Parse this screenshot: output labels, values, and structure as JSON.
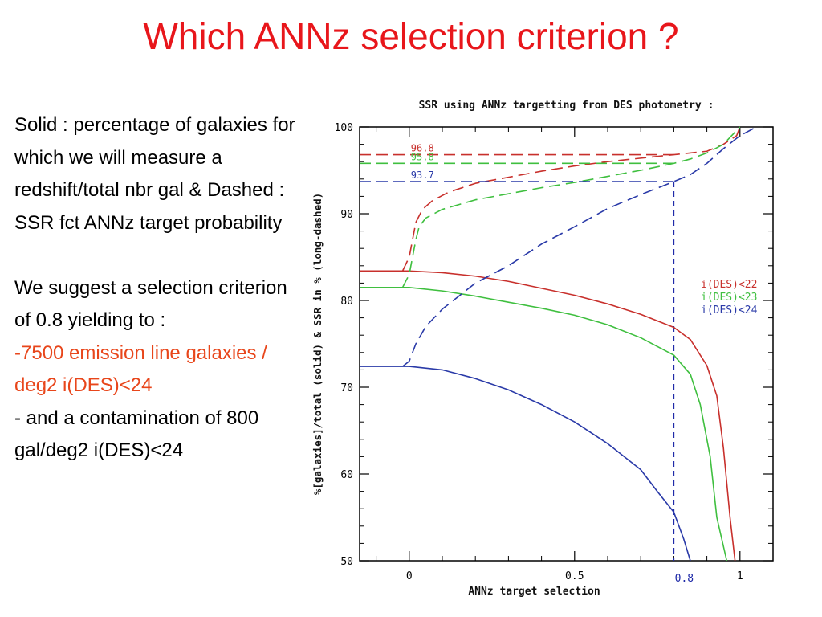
{
  "slide": {
    "title": "Which ANNz selection criterion ?",
    "paragraph1": "Solid : percentage of galaxies for which we will measure a redshift/total nbr gal & Dashed : SSR fct ANNz target probability",
    "paragraph2": "We suggest a selection criterion of 0.8 yielding to :",
    "bullet1": "-7500 emission line galaxies / deg2 i(DES)<24",
    "bullet2": "- and a contamination of 800 gal/deg2 i(DES)<24"
  },
  "chart_data": {
    "type": "line",
    "title": "SSR using ANNz targetting from DES photometry :",
    "xlabel": "ANNz target selection",
    "ylabel": "%[galaxies]/total (solid) & SSR in % (long-dashed)",
    "xlim": [
      -0.15,
      1.1
    ],
    "ylim": [
      50,
      100
    ],
    "xticks": [
      0,
      0.5,
      1
    ],
    "xtick_labels": [
      "0",
      "0.5",
      "1"
    ],
    "yticks": [
      50,
      60,
      70,
      80,
      90,
      100
    ],
    "ytick_labels": [
      "50",
      "60",
      "70",
      "80",
      "90",
      "100"
    ],
    "legend_position": "right",
    "selection_cut": {
      "x": 0.8,
      "label": "0.8",
      "color": "#1f2aa8"
    },
    "annotations": [
      {
        "label": "96.8",
        "y": 96.8,
        "color": "#c8302c"
      },
      {
        "label": "95.8",
        "y": 95.8,
        "color": "#3fbf3f"
      },
      {
        "label": "93.7",
        "y": 93.7,
        "color": "#2a3aa8"
      }
    ],
    "series": [
      {
        "name": "i(DES)<22",
        "color": "#c8302c",
        "kind": "solid",
        "points": [
          [
            -0.15,
            83.4
          ],
          [
            0,
            83.4
          ],
          [
            0.1,
            83.2
          ],
          [
            0.2,
            82.8
          ],
          [
            0.3,
            82.2
          ],
          [
            0.4,
            81.4
          ],
          [
            0.5,
            80.6
          ],
          [
            0.6,
            79.6
          ],
          [
            0.7,
            78.4
          ],
          [
            0.8,
            76.9
          ],
          [
            0.85,
            75.5
          ],
          [
            0.9,
            72.5
          ],
          [
            0.93,
            69
          ],
          [
            0.95,
            63
          ],
          [
            0.97,
            55
          ],
          [
            0.985,
            50
          ]
        ]
      },
      {
        "name": "i(DES)<23",
        "color": "#3fbf3f",
        "kind": "solid",
        "points": [
          [
            -0.15,
            81.5
          ],
          [
            0,
            81.5
          ],
          [
            0.1,
            81.1
          ],
          [
            0.2,
            80.5
          ],
          [
            0.3,
            79.8
          ],
          [
            0.4,
            79.1
          ],
          [
            0.5,
            78.3
          ],
          [
            0.6,
            77.2
          ],
          [
            0.7,
            75.7
          ],
          [
            0.8,
            73.7
          ],
          [
            0.85,
            71.5
          ],
          [
            0.88,
            68
          ],
          [
            0.91,
            62
          ],
          [
            0.93,
            55
          ],
          [
            0.96,
            50
          ]
        ]
      },
      {
        "name": "i(DES)<24",
        "color": "#2a3aa8",
        "kind": "solid",
        "points": [
          [
            -0.15,
            72.4
          ],
          [
            0,
            72.4
          ],
          [
            0.1,
            72
          ],
          [
            0.2,
            71
          ],
          [
            0.3,
            69.7
          ],
          [
            0.4,
            68
          ],
          [
            0.5,
            66
          ],
          [
            0.6,
            63.5
          ],
          [
            0.7,
            60.5
          ],
          [
            0.75,
            58
          ],
          [
            0.8,
            55.6
          ],
          [
            0.83,
            52.5
          ],
          [
            0.85,
            50
          ]
        ]
      },
      {
        "name": "i(DES)<22",
        "color": "#c8302c",
        "kind": "dashed",
        "points": [
          [
            -0.15,
            96.8
          ],
          [
            0.8,
            96.8
          ]
        ]
      },
      {
        "name": "i(DES)<22",
        "color": "#c8302c",
        "kind": "dashed",
        "points": [
          [
            -0.02,
            83.4
          ],
          [
            0,
            85
          ],
          [
            0.01,
            87
          ],
          [
            0.02,
            89
          ],
          [
            0.04,
            90.5
          ],
          [
            0.07,
            91.5
          ],
          [
            0.12,
            92.5
          ],
          [
            0.2,
            93.5
          ],
          [
            0.3,
            94.2
          ],
          [
            0.4,
            94.9
          ],
          [
            0.5,
            95.5
          ],
          [
            0.6,
            96
          ],
          [
            0.7,
            96.4
          ],
          [
            0.8,
            96.8
          ],
          [
            0.9,
            97.2
          ],
          [
            0.95,
            98
          ],
          [
            0.99,
            99
          ],
          [
            1.0,
            100
          ]
        ]
      },
      {
        "name": "i(DES)<23",
        "color": "#3fbf3f",
        "kind": "dashed",
        "points": [
          [
            -0.15,
            95.8
          ],
          [
            0.8,
            95.8
          ]
        ]
      },
      {
        "name": "i(DES)<23",
        "color": "#3fbf3f",
        "kind": "dashed",
        "points": [
          [
            -0.02,
            81.5
          ],
          [
            0,
            83
          ],
          [
            0.01,
            85
          ],
          [
            0.02,
            87
          ],
          [
            0.03,
            88.5
          ],
          [
            0.05,
            89.5
          ],
          [
            0.1,
            90.5
          ],
          [
            0.2,
            91.6
          ],
          [
            0.3,
            92.3
          ],
          [
            0.4,
            93
          ],
          [
            0.5,
            93.6
          ],
          [
            0.6,
            94.3
          ],
          [
            0.7,
            95
          ],
          [
            0.8,
            95.8
          ],
          [
            0.85,
            96.3
          ],
          [
            0.9,
            97
          ],
          [
            0.95,
            98
          ],
          [
            1.0,
            100
          ]
        ]
      },
      {
        "name": "i(DES)<24",
        "color": "#2a3aa8",
        "kind": "dashed",
        "points": [
          [
            -0.15,
            93.7
          ],
          [
            0.8,
            93.7
          ]
        ]
      },
      {
        "name": "i(DES)<24",
        "color": "#2a3aa8",
        "kind": "dashed",
        "points": [
          [
            -0.02,
            72.4
          ],
          [
            0,
            73
          ],
          [
            0.02,
            75
          ],
          [
            0.05,
            77
          ],
          [
            0.1,
            79
          ],
          [
            0.2,
            82
          ],
          [
            0.3,
            84
          ],
          [
            0.4,
            86.5
          ],
          [
            0.5,
            88.5
          ],
          [
            0.6,
            90.6
          ],
          [
            0.7,
            92.2
          ],
          [
            0.8,
            93.7
          ],
          [
            0.85,
            94.5
          ],
          [
            0.9,
            95.8
          ],
          [
            0.95,
            97.5
          ],
          [
            1.0,
            99
          ],
          [
            1.05,
            100
          ]
        ]
      }
    ]
  }
}
